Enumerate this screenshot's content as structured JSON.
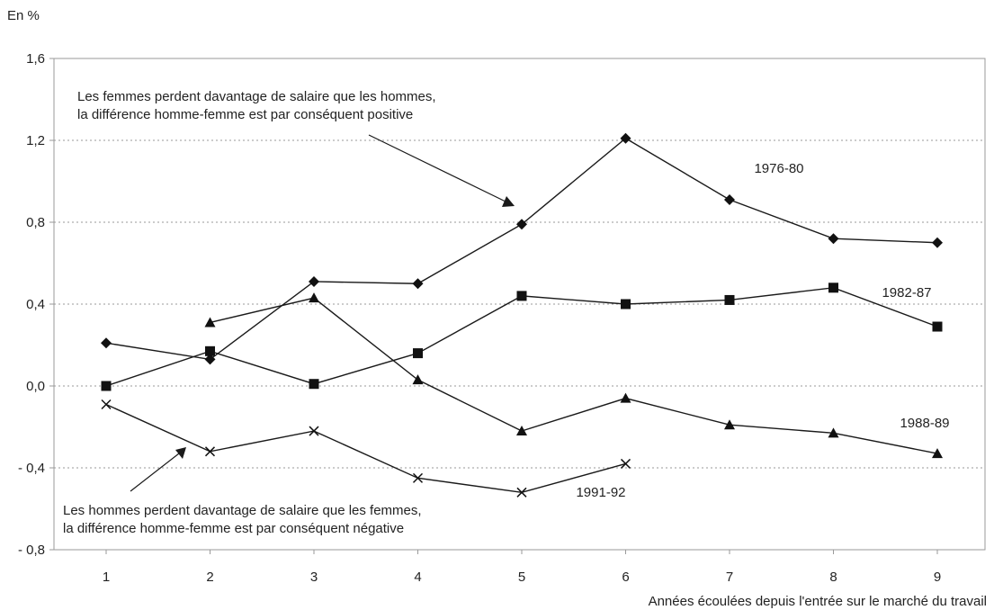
{
  "chart_data": {
    "type": "line",
    "unit_label": "En %",
    "xlabel": "Années écoulées depuis l'entrée sur le marché du travail",
    "ylabel": "",
    "categories": [
      1,
      2,
      3,
      4,
      5,
      6,
      7,
      8,
      9
    ],
    "ylim": [
      -0.8,
      1.6
    ],
    "y_ticks": [
      1.6,
      1.2,
      0.8,
      0.4,
      0.0,
      -0.4,
      -0.8
    ],
    "y_tick_labels": [
      "1,6",
      "1,2",
      "0,8",
      "0,4",
      "0,0",
      "- 0,4",
      "- 0,8"
    ],
    "grid": true,
    "series": [
      {
        "name": "1976-80",
        "marker": "diamond",
        "x": [
          1,
          2,
          3,
          4,
          5,
          6,
          7,
          8,
          9
        ],
        "values": [
          0.21,
          0.13,
          0.51,
          0.5,
          0.79,
          1.21,
          0.91,
          0.72,
          0.7
        ]
      },
      {
        "name": "1982-87",
        "marker": "square",
        "x": [
          1,
          2,
          3,
          4,
          5,
          6,
          7,
          8,
          9
        ],
        "values": [
          0.0,
          0.17,
          0.01,
          0.16,
          0.44,
          0.4,
          0.42,
          0.48,
          0.29
        ]
      },
      {
        "name": "1988-89",
        "marker": "triangle",
        "x": [
          2,
          3,
          4,
          5,
          6,
          7,
          8,
          9
        ],
        "values": [
          0.31,
          0.43,
          0.03,
          -0.22,
          -0.06,
          -0.19,
          -0.23,
          -0.33
        ]
      },
      {
        "name": "1991-92",
        "marker": "cross",
        "x": [
          1,
          2,
          3,
          4,
          5,
          6
        ],
        "values": [
          -0.09,
          -0.32,
          -0.22,
          -0.45,
          -0.52,
          -0.38
        ]
      }
    ],
    "annotations": [
      {
        "id": "top",
        "lines": [
          "Les femmes perdent davantage de salaire que les hommes,",
          "la différence homme-femme est par conséquent positive"
        ]
      },
      {
        "id": "bottom",
        "lines": [
          "Les hommes perdent davantage de salaire que les femmes,",
          "la différence homme-femme est par conséquent négative"
        ]
      }
    ]
  }
}
